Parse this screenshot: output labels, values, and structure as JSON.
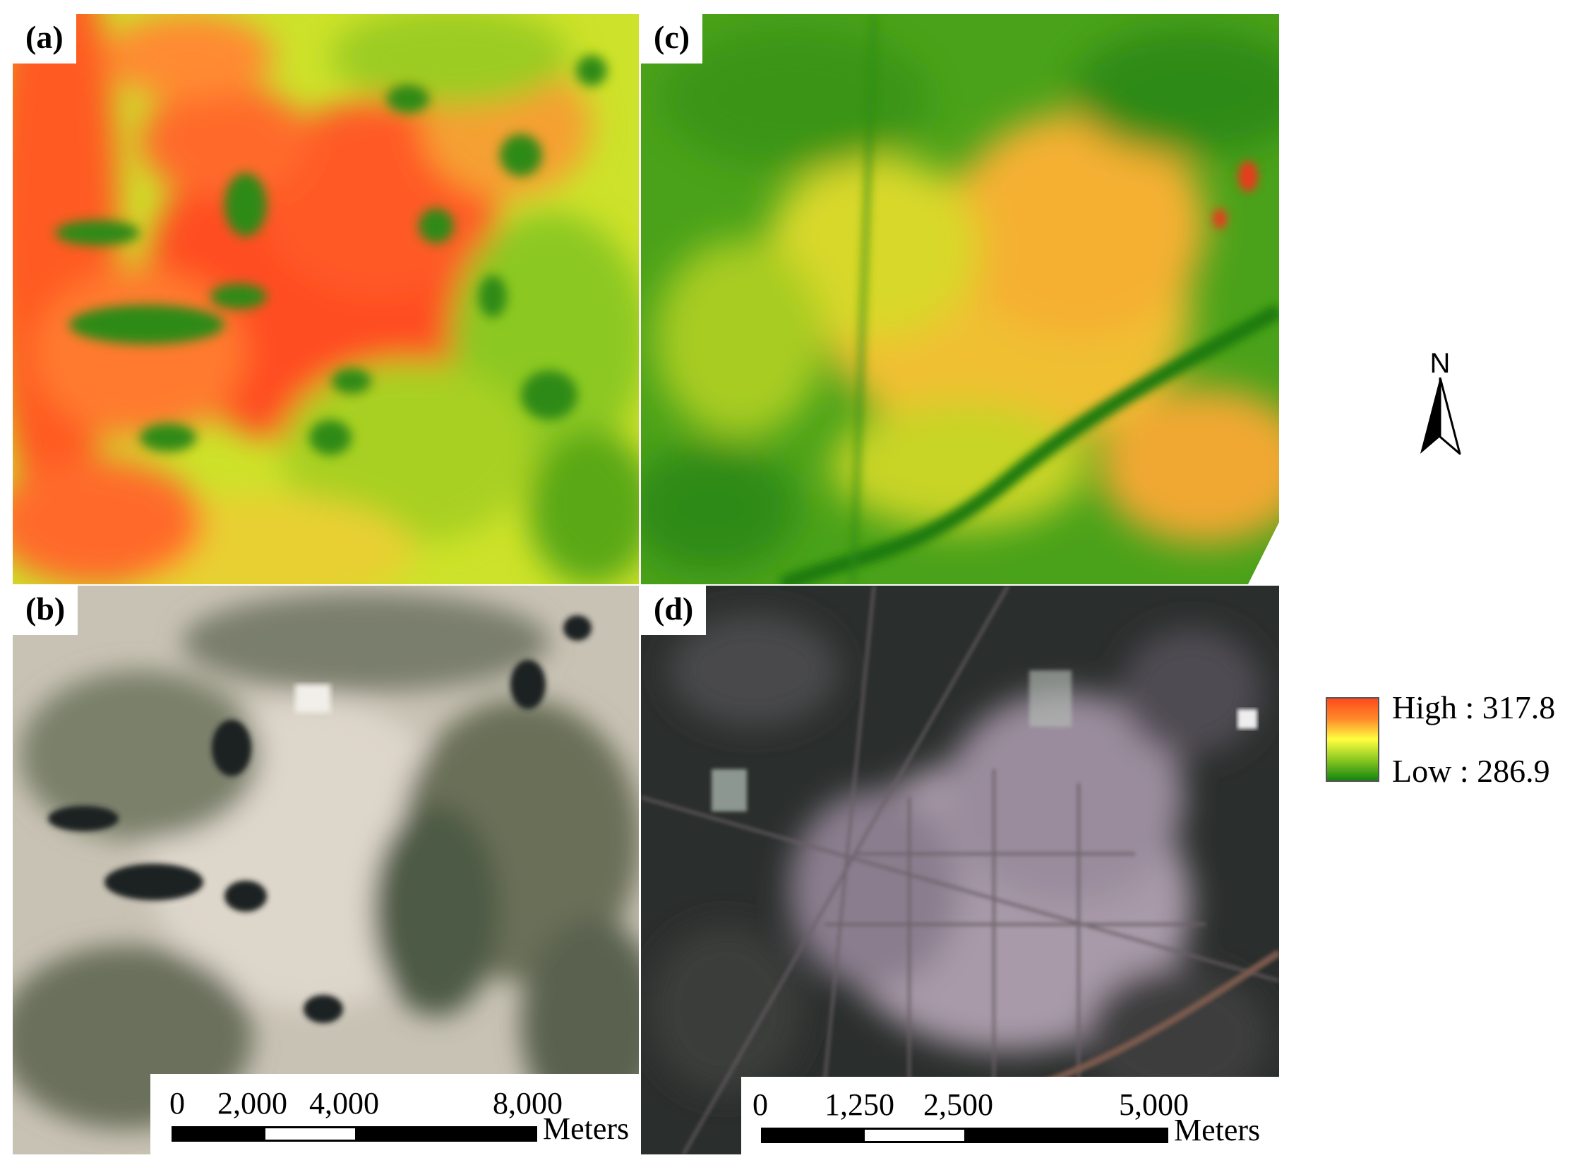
{
  "panels": {
    "a": {
      "label": "(a)"
    },
    "b": {
      "label": "(b)"
    },
    "c": {
      "label": "(c)"
    },
    "d": {
      "label": "(d)"
    }
  },
  "scalebar_left": {
    "ticks": [
      "0",
      "2,000",
      "4,000",
      "8,000"
    ],
    "units": "Meters"
  },
  "scalebar_right": {
    "ticks": [
      "0",
      "1,250",
      "2,500",
      "5,000"
    ],
    "units": "Meters"
  },
  "north_arrow": {
    "label": "N",
    "icon": "north-arrow-icon"
  },
  "legend": {
    "high_label": "High : 317.8",
    "low_label": "Low : 286.9",
    "colors": {
      "high": "#ff4a1c",
      "mid": "#ffff40",
      "low": "#1a8a10"
    }
  }
}
